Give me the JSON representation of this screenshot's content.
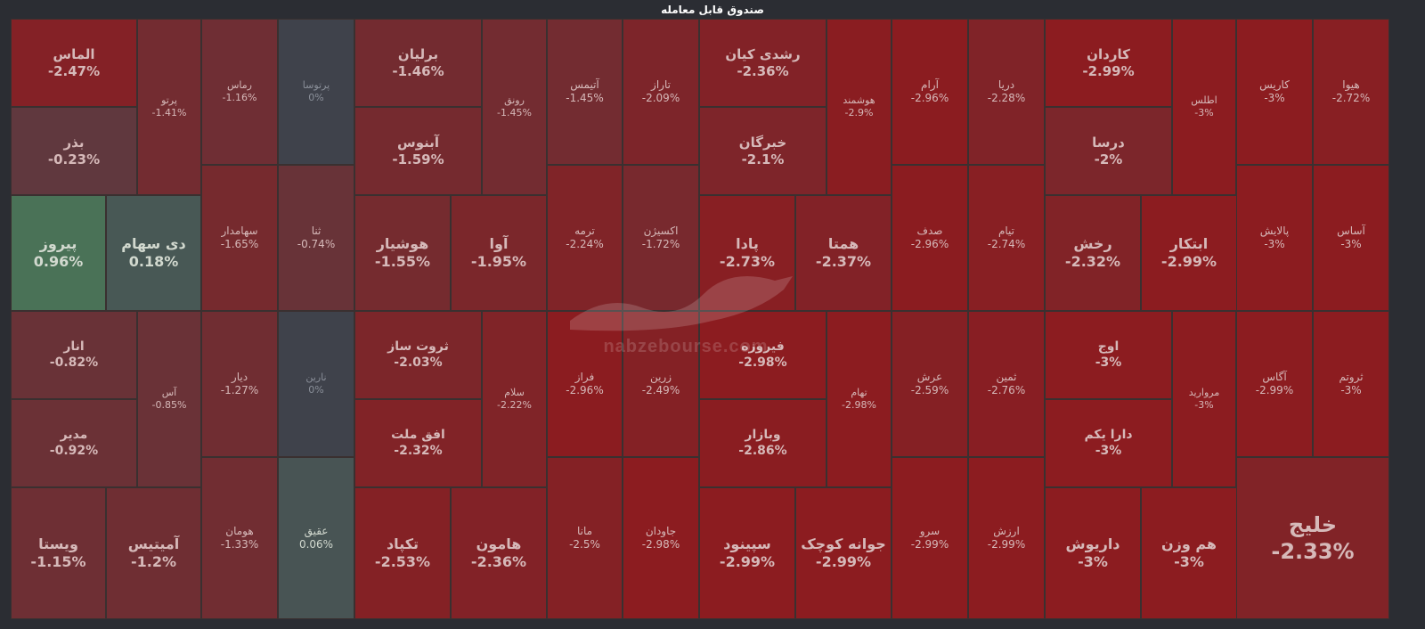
{
  "title": "صندوق قابل معامله",
  "watermark": {
    "url": "nabzebourse.com",
    "logo": "nabz-bourse-bull-logo"
  },
  "chart_data": {
    "type": "treemap",
    "title": "صندوق قابل معامله",
    "items": [
      {
        "name": "الماس",
        "change": -2.47,
        "label": "-2.47%"
      },
      {
        "name": "بذر",
        "change": -0.23,
        "label": "-0.23%"
      },
      {
        "name": "پیروز",
        "change": 0.96,
        "label": "0.96%"
      },
      {
        "name": "دی سهام",
        "change": 0.18,
        "label": "0.18%"
      },
      {
        "name": "انار",
        "change": -0.82,
        "label": "-0.82%"
      },
      {
        "name": "مدیر",
        "change": -0.92,
        "label": "-0.92%"
      },
      {
        "name": "ویستا",
        "change": -1.15,
        "label": "-1.15%"
      },
      {
        "name": "آمیتیس",
        "change": -1.2,
        "label": "-1.2%"
      },
      {
        "name": "پرتو",
        "change": -1.41,
        "label": "-1.41%"
      },
      {
        "name": "آس",
        "change": -0.85,
        "label": "-0.85%"
      },
      {
        "name": "رماس",
        "change": -1.16,
        "label": "-1.16%"
      },
      {
        "name": "سهامدار",
        "change": -1.65,
        "label": "-1.65%"
      },
      {
        "name": "دیار",
        "change": -1.27,
        "label": "-1.27%"
      },
      {
        "name": "هومان",
        "change": -1.33,
        "label": "-1.33%"
      },
      {
        "name": "پرتوسا",
        "change": 0,
        "label": "0%"
      },
      {
        "name": "ثنا",
        "change": -0.74,
        "label": "-0.74%"
      },
      {
        "name": "نارین",
        "change": 0,
        "label": "0%"
      },
      {
        "name": "عقیق",
        "change": 0.06,
        "label": "0.06%"
      },
      {
        "name": "برلیان",
        "change": -1.46,
        "label": "-1.46%"
      },
      {
        "name": "آبنوس",
        "change": -1.59,
        "label": "-1.59%"
      },
      {
        "name": "هوشیار",
        "change": -1.55,
        "label": "-1.55%"
      },
      {
        "name": "آوا",
        "change": -1.95,
        "label": "-1.95%"
      },
      {
        "name": "ثروت ساز",
        "change": -2.03,
        "label": "-2.03%"
      },
      {
        "name": "افق ملت",
        "change": -2.32,
        "label": "-2.32%"
      },
      {
        "name": "تکپاد",
        "change": -2.53,
        "label": "-2.53%"
      },
      {
        "name": "هامون",
        "change": -2.36,
        "label": "-2.36%"
      },
      {
        "name": "رونق",
        "change": -1.45,
        "label": "-1.45%"
      },
      {
        "name": "سلام",
        "change": -2.22,
        "label": "-2.22%"
      },
      {
        "name": "آتیمس",
        "change": -1.45,
        "label": "-1.45%"
      },
      {
        "name": "ترمه",
        "change": -2.24,
        "label": "-2.24%"
      },
      {
        "name": "فراز",
        "change": -2.96,
        "label": "-2.96%"
      },
      {
        "name": "مانا",
        "change": -2.5,
        "label": "-2.5%"
      },
      {
        "name": "تاراز",
        "change": -2.09,
        "label": "-2.09%"
      },
      {
        "name": "اکسیژن",
        "change": -1.72,
        "label": "-1.72%"
      },
      {
        "name": "زرین",
        "change": -2.49,
        "label": "-2.49%"
      },
      {
        "name": "جاودان",
        "change": -2.98,
        "label": "-2.98%"
      },
      {
        "name": "رشدی کیان",
        "change": -2.36,
        "label": "-2.36%"
      },
      {
        "name": "خبرگان",
        "change": -2.1,
        "label": "-2.1%"
      },
      {
        "name": "پادا",
        "change": -2.73,
        "label": "-2.73%"
      },
      {
        "name": "همتا",
        "change": -2.37,
        "label": "-2.37%"
      },
      {
        "name": "فیروزه",
        "change": -2.98,
        "label": "-2.98%"
      },
      {
        "name": "وبازار",
        "change": -2.86,
        "label": "-2.86%"
      },
      {
        "name": "سپینود",
        "change": -2.99,
        "label": "-2.99%"
      },
      {
        "name": "جوانه کوچک",
        "change": -2.99,
        "label": "-2.99%"
      },
      {
        "name": "هوشمند",
        "change": -2.9,
        "label": "-2.9%"
      },
      {
        "name": "تهام",
        "change": -2.98,
        "label": "-2.98%"
      },
      {
        "name": "آرام",
        "change": -2.96,
        "label": "-2.96%"
      },
      {
        "name": "دریا",
        "change": -2.28,
        "label": "-2.28%"
      },
      {
        "name": "صدف",
        "change": -2.96,
        "label": "-2.96%"
      },
      {
        "name": "تیام",
        "change": -2.74,
        "label": "-2.74%"
      },
      {
        "name": "عرش",
        "change": -2.59,
        "label": "-2.59%"
      },
      {
        "name": "ثمین",
        "change": -2.76,
        "label": "-2.76%"
      },
      {
        "name": "سرو",
        "change": -2.99,
        "label": "-2.99%"
      },
      {
        "name": "ارزش",
        "change": -2.99,
        "label": "-2.99%"
      },
      {
        "name": "کاردان",
        "change": -2.99,
        "label": "-2.99%"
      },
      {
        "name": "درسا",
        "change": -2,
        "label": "-2%"
      },
      {
        "name": "رخش",
        "change": -2.32,
        "label": "-2.32%"
      },
      {
        "name": "ابتکار",
        "change": -2.99,
        "label": "-2.99%"
      },
      {
        "name": "اوج",
        "change": -3,
        "label": "-3%"
      },
      {
        "name": "دارا یکم",
        "change": -3,
        "label": "-3%"
      },
      {
        "name": "داریوش",
        "change": -3,
        "label": "-3%"
      },
      {
        "name": "هم وزن",
        "change": -3,
        "label": "-3%"
      },
      {
        "name": "اطلس",
        "change": -3,
        "label": "-3%"
      },
      {
        "name": "مروارید",
        "change": -3,
        "label": "-3%"
      },
      {
        "name": "کاریس",
        "change": -3,
        "label": "-3%"
      },
      {
        "name": "هیوا",
        "change": -2.72,
        "label": "-2.72%"
      },
      {
        "name": "پالایش",
        "change": -3,
        "label": "-3%"
      },
      {
        "name": "آساس",
        "change": -3,
        "label": "-3%"
      },
      {
        "name": "آگاس",
        "change": -2.99,
        "label": "-2.99%"
      },
      {
        "name": "ثروتم",
        "change": -3,
        "label": "-3%"
      },
      {
        "name": "خلیج",
        "change": -2.33,
        "label": "-2.33%"
      }
    ]
  }
}
